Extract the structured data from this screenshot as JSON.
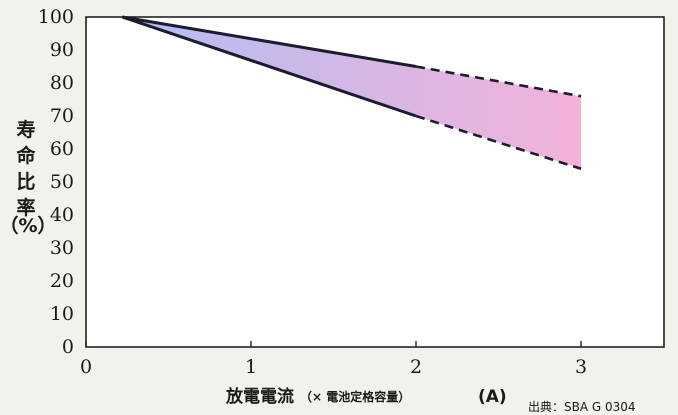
{
  "chart_data": {
    "type": "area",
    "title": "",
    "xlabel_main": "放電電流",
    "xlabel_paren": "（× 電池定格容量）",
    "xlabel_unit": "(A)",
    "ylabel_lines": [
      "寿",
      "命",
      "比",
      "率",
      "（%）"
    ],
    "source": "出典：SBA G 0304",
    "xlim": [
      0,
      3.5
    ],
    "ylim": [
      0,
      100
    ],
    "x_ticks": [
      0,
      1,
      2,
      3
    ],
    "y_ticks": [
      0,
      10,
      20,
      30,
      40,
      50,
      60,
      70,
      80,
      90,
      100
    ],
    "grid": false,
    "series": [
      {
        "name": "",
        "role": "upper",
        "x": [
          0.22,
          2.0,
          3.0
        ],
        "values": [
          100,
          85,
          76
        ],
        "solid_until": 2.0
      },
      {
        "name": "",
        "role": "lower",
        "x": [
          0.22,
          2.0,
          3.0
        ],
        "values": [
          100,
          70,
          54
        ],
        "solid_until": 2.0
      }
    ],
    "band_colors": {
      "start": "#b3bdf2",
      "end": "#f3b2d9"
    },
    "line_color": "#1c1c2e"
  }
}
